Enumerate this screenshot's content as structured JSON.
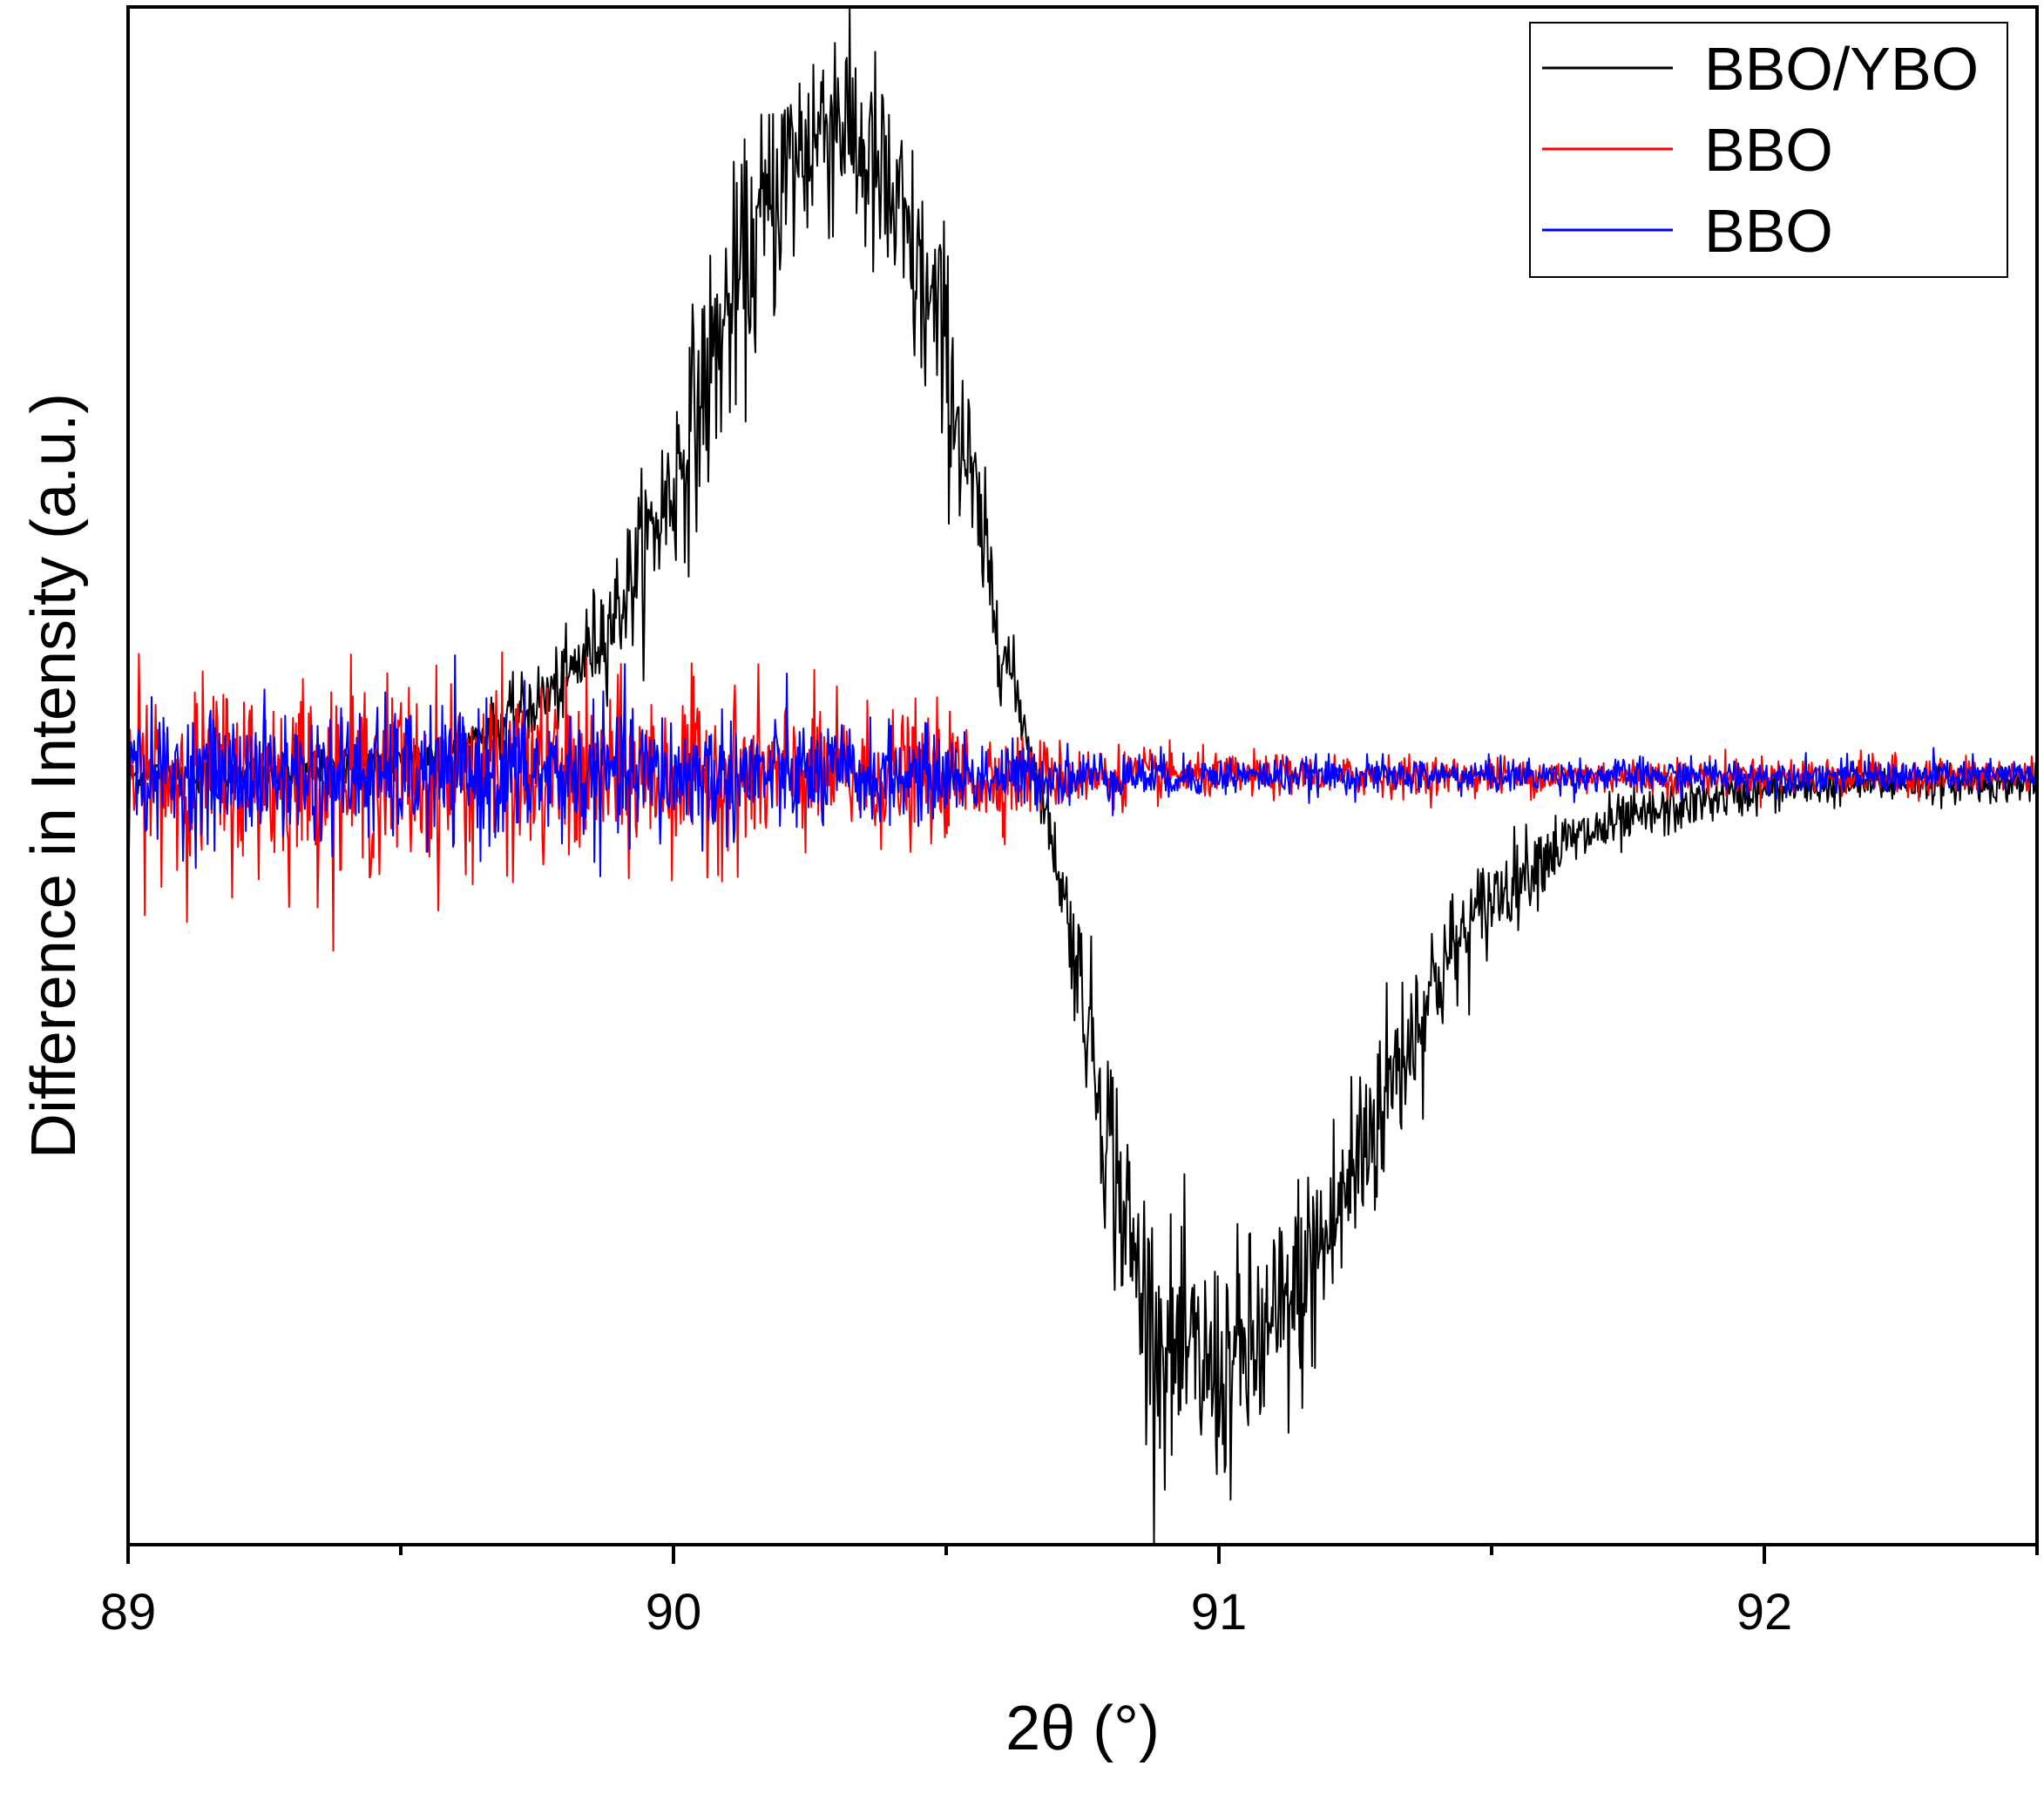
{
  "chart_data": {
    "type": "line",
    "xlabel": "2θ (°)",
    "ylabel": "Difference in Intensity (a.u.)",
    "xlim": [
      89,
      92.5
    ],
    "ylim": [
      -1.0,
      1.0
    ],
    "x_ticks": [
      89,
      90,
      91,
      92
    ],
    "x_tick_labels": [
      "89",
      "90",
      "91",
      "92"
    ],
    "y_ticks_labeled": false,
    "grid": false,
    "legend": "top-right",
    "series": [
      {
        "name": "BBO/YBO",
        "color": "#000000",
        "x": [
          89.0,
          89.2,
          89.4,
          89.6,
          89.8,
          89.9,
          90.0,
          90.1,
          90.2,
          90.3,
          90.4,
          90.5,
          90.55,
          90.6,
          90.65,
          90.7,
          90.75,
          90.8,
          90.85,
          90.9,
          91.0,
          91.1,
          91.2,
          91.3,
          91.4,
          91.5,
          91.6,
          91.7,
          91.8,
          91.9,
          92.0,
          92.2,
          92.5
        ],
        "values": [
          0.0,
          0.0,
          0.01,
          0.03,
          0.12,
          0.22,
          0.38,
          0.6,
          0.78,
          0.87,
          0.74,
          0.55,
          0.36,
          0.18,
          0.05,
          -0.1,
          -0.28,
          -0.48,
          -0.65,
          -0.75,
          -0.78,
          -0.73,
          -0.6,
          -0.42,
          -0.26,
          -0.16,
          -0.1,
          -0.07,
          -0.05,
          -0.03,
          -0.02,
          -0.01,
          -0.01
        ]
      },
      {
        "name": "BBO",
        "color": "#ff0000",
        "x": [
          89.0,
          89.5,
          90.0,
          90.5,
          90.7,
          91.0,
          91.5,
          92.0,
          92.5
        ],
        "values": [
          0.0,
          0.0,
          0.0,
          0.0,
          0.0,
          0.0,
          0.0,
          0.0,
          0.0
        ],
        "noise_amplitude": [
          0.11,
          0.11,
          0.1,
          0.07,
          0.04,
          0.025,
          0.022,
          0.022,
          0.022
        ]
      },
      {
        "name": "BBO",
        "color": "#0000ff",
        "x": [
          89.0,
          89.5,
          90.0,
          90.5,
          90.7,
          91.0,
          91.5,
          92.0,
          92.5
        ],
        "values": [
          0.0,
          0.0,
          0.0,
          0.0,
          0.0,
          0.0,
          0.0,
          0.0,
          0.0
        ],
        "noise_amplitude": [
          0.07,
          0.08,
          0.08,
          0.05,
          0.035,
          0.022,
          0.02,
          0.02,
          0.02
        ]
      }
    ]
  }
}
